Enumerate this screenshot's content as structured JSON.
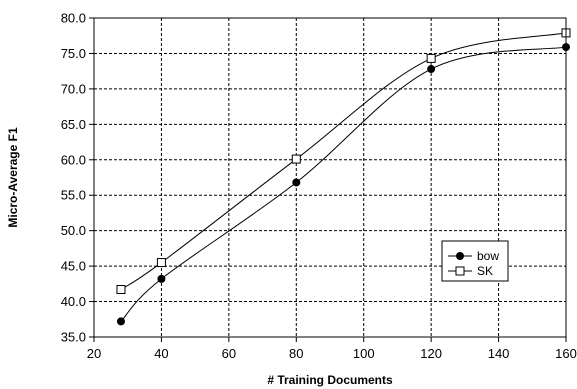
{
  "chart_data": {
    "type": "line",
    "title": "",
    "xlabel": "# Training Documents",
    "ylabel": "Micro-Average F1",
    "xlim": [
      20,
      160
    ],
    "ylim": [
      35,
      80
    ],
    "x_ticks": [
      20,
      40,
      60,
      80,
      100,
      120,
      140,
      160
    ],
    "x_tick_labels": [
      "20",
      "40",
      "60",
      "80",
      "100",
      "120",
      "140",
      "160"
    ],
    "y_ticks": [
      35,
      40,
      45,
      50,
      55,
      60,
      65,
      70,
      75,
      80
    ],
    "y_tick_labels": [
      "35.0",
      "40.0",
      "45.0",
      "50.0",
      "55.0",
      "60.0",
      "65.0",
      "70.0",
      "75.0",
      "80.0"
    ],
    "grid": true,
    "legend_position": "right",
    "series": [
      {
        "name": "bow",
        "marker": "filled-circle",
        "color": "#000000",
        "x": [
          28,
          40,
          80,
          120,
          160
        ],
        "y": [
          37.2,
          43.2,
          56.8,
          72.8,
          75.9
        ]
      },
      {
        "name": "SK",
        "marker": "open-square",
        "color": "#000000",
        "x": [
          28,
          40,
          80,
          120,
          160
        ],
        "y": [
          41.7,
          45.5,
          60.1,
          74.3,
          77.9
        ]
      }
    ]
  }
}
